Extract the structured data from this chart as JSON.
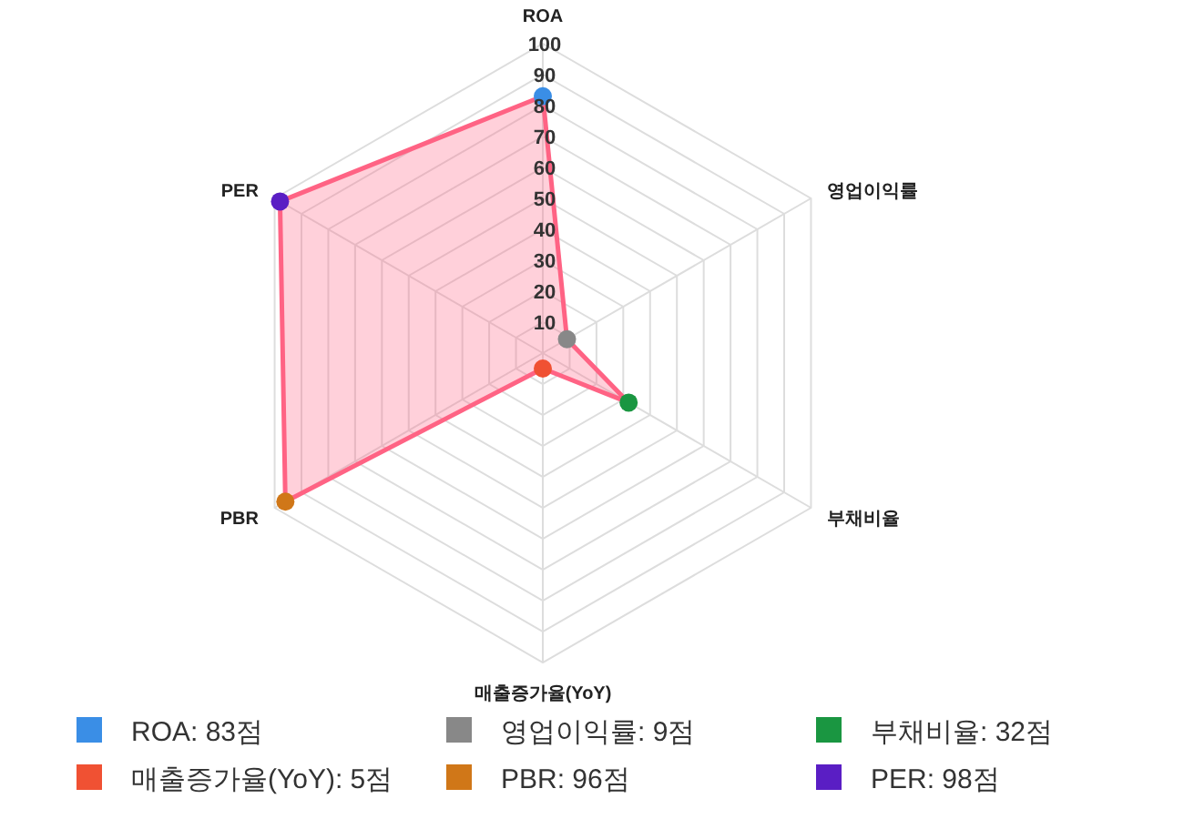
{
  "chart_data": {
    "type": "radar",
    "categories": [
      "ROA",
      "영업이익률",
      "부채비율",
      "매출증가율(YoY)",
      "PBR",
      "PER"
    ],
    "series": [
      {
        "color": "#ff6384",
        "colors": [
          "#3a8ee6",
          "#888888",
          "#1a9641",
          "#f05133",
          "#d07718",
          "#5a1ec4"
        ],
        "values": [
          83,
          9,
          32,
          5,
          96,
          98
        ]
      }
    ],
    "annotations": [
      "ROA: 83점",
      "영업이익률: 9점",
      "부채비율: 32점",
      "매출증가율(YoY): 5점",
      "PBR: 96점",
      "PER: 98점"
    ],
    "ylim": [
      0,
      100
    ],
    "yticks": [
      10,
      20,
      30,
      40,
      50,
      60,
      70,
      80,
      90,
      100
    ],
    "grid": true,
    "marker": "circle"
  }
}
